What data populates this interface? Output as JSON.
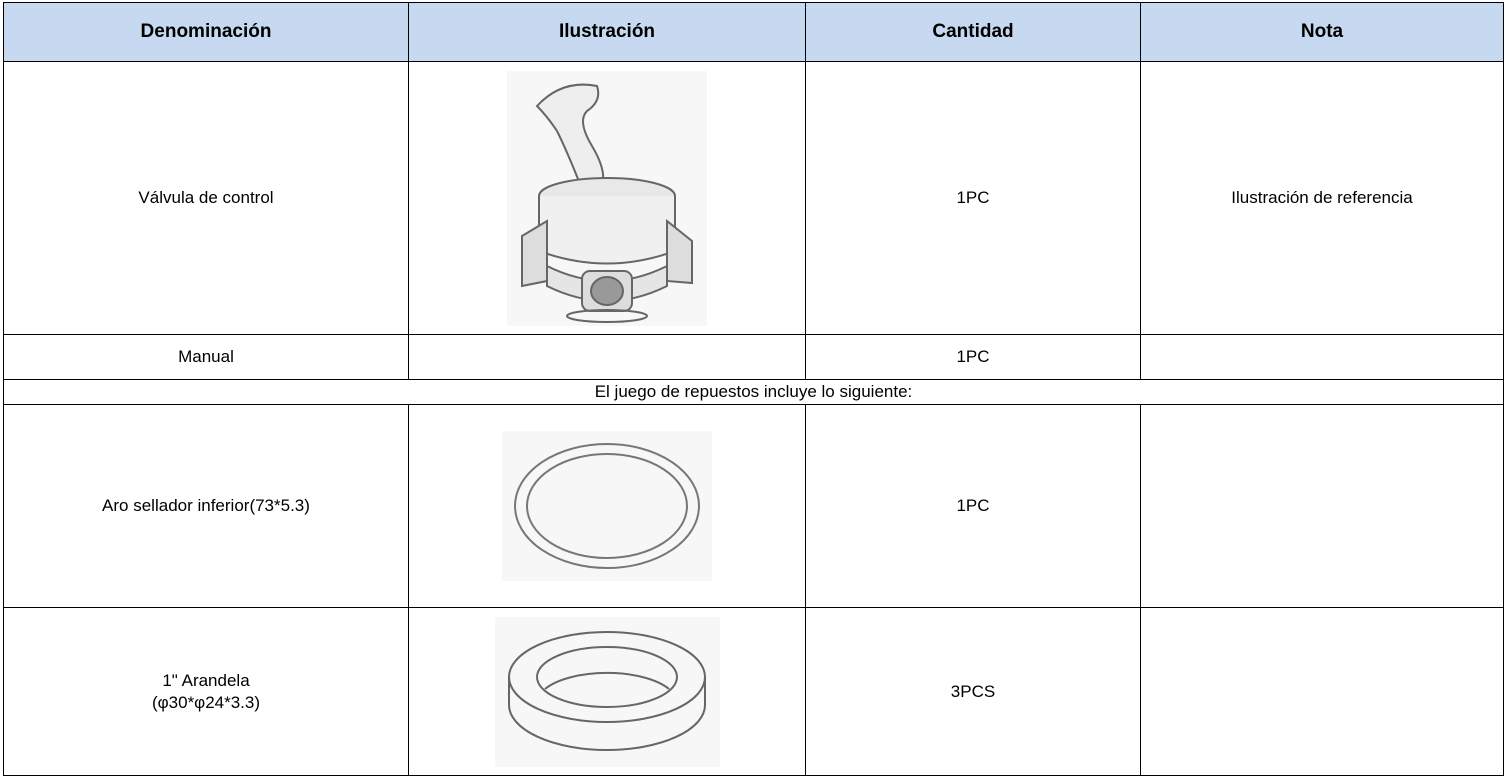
{
  "table": {
    "columns": [
      "Denominación",
      "Ilustración",
      "Cantidad",
      "Nota"
    ],
    "rows": [
      {
        "name": [
          "Válvula de control"
        ],
        "quantity": "1PC",
        "note": "Ilustración de referencia"
      },
      {
        "name": [
          "Manual"
        ],
        "quantity": "1PC"
      },
      {
        "name": [
          "Aro sellador inferior(73*5.3)"
        ],
        "quantity": "1PC"
      },
      {
        "name": [
          "1\" Arandela",
          "(φ30*φ24*3.3)"
        ],
        "quantity": "3PCS"
      }
    ],
    "section": "El juego de repuestos incluye lo siguiente:"
  }
}
